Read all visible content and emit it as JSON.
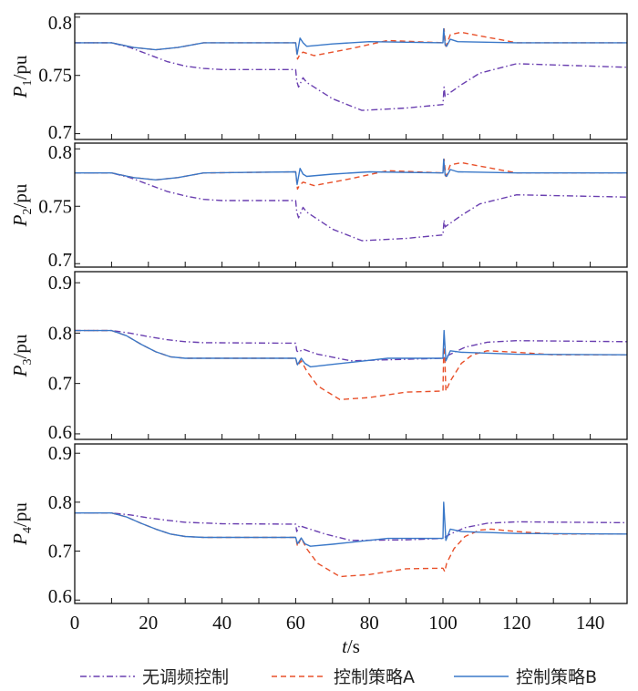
{
  "chart_data": {
    "type": "line",
    "xlabel": "t/s",
    "xlabel_italic": "t",
    "xlabel_unit": "/s",
    "xlim": [
      0,
      150
    ],
    "xticks": [
      0,
      20,
      40,
      60,
      80,
      100,
      120,
      140
    ],
    "legend": {
      "placement": "bottom",
      "entries": [
        "无调频控制",
        "控制策略A",
        "控制策略B"
      ]
    },
    "colors": {
      "none": "#6a3fb0",
      "A": "#e8502a",
      "B": "#3a78c8"
    },
    "panels": [
      {
        "ylabel_sym": "P",
        "ylabel_sub": "1",
        "ylabel_unit": "/pu",
        "ylim": [
          0.695,
          0.803
        ],
        "yticks": [
          "0.7",
          "0.75",
          "0.8"
        ],
        "series": [
          {
            "name": "无调频控制",
            "t": [
              0,
              10,
              15,
              20,
              25,
              30,
              35,
              40,
              60,
              60.3,
              60.8,
              62,
              63,
              70,
              78,
              90,
              100,
              100.3,
              100.6,
              101,
              105,
              110,
              120,
              150
            ],
            "v": [
              0.778,
              0.778,
              0.774,
              0.768,
              0.762,
              0.758,
              0.756,
              0.755,
              0.755,
              0.745,
              0.74,
              0.748,
              0.744,
              0.73,
              0.72,
              0.722,
              0.725,
              0.74,
              0.732,
              0.733,
              0.742,
              0.752,
              0.76,
              0.757
            ]
          },
          {
            "name": "控制策略A",
            "t": [
              0,
              10,
              16,
              22,
              28,
              35,
              60,
              60.5,
              61,
              62,
              65,
              75,
              85,
              100,
              100.3,
              100.8,
              102,
              105,
              110,
              120,
              150
            ],
            "v": [
              0.778,
              0.778,
              0.774,
              0.772,
              0.774,
              0.778,
              0.778,
              0.764,
              0.767,
              0.77,
              0.767,
              0.773,
              0.78,
              0.778,
              0.79,
              0.775,
              0.785,
              0.787,
              0.784,
              0.778,
              0.778
            ]
          },
          {
            "name": "控制策略B",
            "t": [
              0,
              10,
              16,
              22,
              28,
              35,
              60,
              60.4,
              61.2,
              62,
              63,
              70,
              80,
              100,
              100.2,
              100.6,
              101,
              102,
              104,
              120,
              150
            ],
            "v": [
              0.778,
              0.778,
              0.774,
              0.772,
              0.774,
              0.778,
              0.778,
              0.768,
              0.782,
              0.778,
              0.775,
              0.777,
              0.779,
              0.778,
              0.79,
              0.776,
              0.775,
              0.781,
              0.779,
              0.778,
              0.778
            ]
          }
        ]
      },
      {
        "ylabel_sym": "P",
        "ylabel_sub": "2",
        "ylabel_unit": "/pu",
        "ylim": [
          0.697,
          0.805
        ],
        "yticks": [
          "0.7",
          "0.75",
          "0.8"
        ],
        "series": [
          {
            "name": "无调频控制",
            "t": [
              0,
              10,
              15,
              20,
              25,
              30,
              35,
              40,
              60,
              60.3,
              60.8,
              62,
              63,
              70,
              78,
              90,
              100,
              100.3,
              100.6,
              101,
              105,
              110,
              120,
              150
            ],
            "v": [
              0.779,
              0.779,
              0.775,
              0.769,
              0.763,
              0.759,
              0.756,
              0.755,
              0.755,
              0.745,
              0.74,
              0.749,
              0.745,
              0.73,
              0.72,
              0.722,
              0.725,
              0.738,
              0.732,
              0.733,
              0.742,
              0.752,
              0.76,
              0.758
            ]
          },
          {
            "name": "控制策略A",
            "t": [
              0,
              10,
              16,
              22,
              28,
              35,
              60,
              60.5,
              61,
              62,
              65,
              75,
              85,
              100,
              100.3,
              100.8,
              102,
              105,
              110,
              120,
              150
            ],
            "v": [
              0.779,
              0.779,
              0.775,
              0.773,
              0.775,
              0.779,
              0.78,
              0.765,
              0.768,
              0.771,
              0.768,
              0.774,
              0.781,
              0.779,
              0.791,
              0.776,
              0.786,
              0.788,
              0.785,
              0.779,
              0.779
            ]
          },
          {
            "name": "控制策略B",
            "t": [
              0,
              10,
              16,
              22,
              28,
              35,
              60,
              60.4,
              61.2,
              62,
              63,
              70,
              80,
              100,
              100.2,
              100.6,
              101,
              102,
              104,
              120,
              150
            ],
            "v": [
              0.779,
              0.779,
              0.775,
              0.773,
              0.775,
              0.779,
              0.78,
              0.769,
              0.783,
              0.778,
              0.776,
              0.778,
              0.78,
              0.779,
              0.791,
              0.777,
              0.776,
              0.782,
              0.78,
              0.779,
              0.779
            ]
          }
        ]
      },
      {
        "ylabel_sym": "P",
        "ylabel_sub": "3",
        "ylabel_unit": "/pu",
        "ylim": [
          0.589,
          0.922
        ],
        "yticks": [
          "0.6",
          "0.7",
          "0.8",
          "0.9"
        ],
        "series": [
          {
            "name": "无调频控制",
            "t": [
              0,
              10,
              15,
              20,
              25,
              30,
              35,
              60,
              60.3,
              60.8,
              62,
              66,
              75,
              90,
              100,
              102,
              106,
              112,
              120,
              150
            ],
            "v": [
              0.805,
              0.805,
              0.8,
              0.793,
              0.787,
              0.783,
              0.781,
              0.78,
              0.765,
              0.762,
              0.768,
              0.758,
              0.745,
              0.748,
              0.75,
              0.758,
              0.772,
              0.782,
              0.785,
              0.783
            ]
          },
          {
            "name": "控制策略A",
            "t": [
              0,
              10,
              14,
              18,
              22,
              26,
              30,
              60,
              60.5,
              61.5,
              63,
              66,
              72,
              80,
              90,
              100,
              100.3,
              100.8,
              102,
              105,
              108,
              112,
              120,
              130,
              150
            ],
            "v": [
              0.805,
              0.805,
              0.795,
              0.778,
              0.763,
              0.753,
              0.75,
              0.75,
              0.735,
              0.745,
              0.725,
              0.695,
              0.668,
              0.672,
              0.683,
              0.685,
              0.8,
              0.685,
              0.705,
              0.74,
              0.757,
              0.765,
              0.762,
              0.757,
              0.757
            ]
          },
          {
            "name": "控制策略B",
            "t": [
              0,
              10,
              14,
              18,
              22,
              26,
              30,
              60,
              60.5,
              61.5,
              62.5,
              64,
              70,
              85,
              100,
              100.3,
              100.8,
              102,
              105,
              120,
              150
            ],
            "v": [
              0.805,
              0.805,
              0.795,
              0.778,
              0.763,
              0.753,
              0.75,
              0.75,
              0.737,
              0.75,
              0.74,
              0.733,
              0.738,
              0.75,
              0.75,
              0.805,
              0.745,
              0.765,
              0.762,
              0.758,
              0.757
            ]
          }
        ]
      },
      {
        "ylabel_sym": "P",
        "ylabel_sub": "4",
        "ylabel_unit": "/pu",
        "ylim": [
          0.593,
          0.919
        ],
        "yticks": [
          "0.6",
          "0.7",
          "0.8",
          "0.9"
        ],
        "series": [
          {
            "name": "无调频控制",
            "t": [
              0,
              10,
              15,
              20,
              25,
              30,
              40,
              60,
              60.3,
              61,
              63,
              68,
              75,
              90,
              100,
              102,
              106,
              112,
              120,
              150
            ],
            "v": [
              0.778,
              0.778,
              0.774,
              0.768,
              0.763,
              0.759,
              0.756,
              0.755,
              0.74,
              0.752,
              0.747,
              0.735,
              0.722,
              0.723,
              0.726,
              0.735,
              0.748,
              0.757,
              0.76,
              0.758
            ]
          },
          {
            "name": "控制策略A",
            "t": [
              0,
              10,
              14,
              18,
              22,
              26,
              30,
              35,
              60,
              60.5,
              61.5,
              63,
              66,
              72,
              80,
              90,
              100,
              100.5,
              101,
              103,
              106,
              110,
              113,
              120,
              130,
              150
            ],
            "v": [
              0.778,
              0.778,
              0.77,
              0.757,
              0.745,
              0.735,
              0.73,
              0.728,
              0.728,
              0.71,
              0.727,
              0.705,
              0.675,
              0.648,
              0.652,
              0.664,
              0.665,
              0.658,
              0.675,
              0.705,
              0.73,
              0.743,
              0.745,
              0.74,
              0.735,
              0.735
            ]
          },
          {
            "name": "控制策略B",
            "t": [
              0,
              10,
              14,
              18,
              22,
              26,
              30,
              35,
              60,
              60.5,
              61.5,
              62.5,
              64,
              70,
              85,
              100,
              100.2,
              100.8,
              102,
              105,
              120,
              150
            ],
            "v": [
              0.778,
              0.778,
              0.77,
              0.757,
              0.745,
              0.735,
              0.73,
              0.728,
              0.728,
              0.715,
              0.727,
              0.715,
              0.71,
              0.714,
              0.726,
              0.726,
              0.8,
              0.722,
              0.745,
              0.74,
              0.736,
              0.735
            ]
          }
        ]
      }
    ]
  }
}
